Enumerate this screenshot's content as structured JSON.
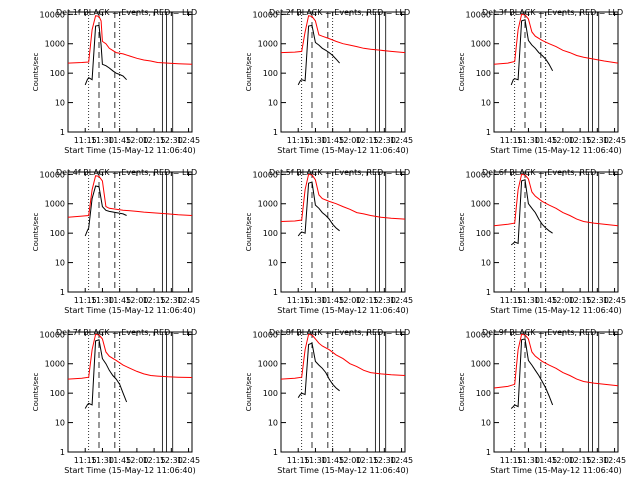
{
  "figure": {
    "xlabel": "Start Time (15-May-12 11:06:40)",
    "ylabel": "Counts/sec",
    "x_tick_labels": [
      "11:15",
      "11:30",
      "11:45",
      "12:00",
      "12:15",
      "12:30",
      "12:45"
    ],
    "y_tick_labels": [
      "1",
      "10",
      "100",
      "1000",
      "10000"
    ],
    "colors": {
      "events": "#000000",
      "lld": "#ff0000",
      "axes": "#000000"
    }
  },
  "chart_data": [
    {
      "type": "line",
      "title": "Det 1f BLACK = Events, RED = LLD",
      "yscale": "log",
      "xlim": [
        11.0,
        12.8
      ],
      "ylim": [
        1,
        12000
      ],
      "series": [
        {
          "name": "Events",
          "x": [
            11.25,
            11.28,
            11.3,
            11.35,
            11.4,
            11.45,
            11.48,
            11.5,
            11.55,
            11.6,
            11.65,
            11.7,
            11.75,
            11.8,
            11.85
          ],
          "y": [
            40,
            60,
            70,
            60,
            4000,
            4200,
            900,
            200,
            180,
            150,
            120,
            100,
            90,
            80,
            60
          ]
        },
        {
          "name": "LLD",
          "x": [
            11.0,
            11.2,
            11.3,
            11.35,
            11.4,
            11.45,
            11.48,
            11.5,
            11.55,
            11.6,
            11.7,
            11.8,
            11.9,
            12.0,
            12.1,
            12.2,
            12.3,
            12.45,
            12.6,
            12.8
          ],
          "y": [
            220,
            230,
            240,
            3000,
            9000,
            8500,
            6000,
            1200,
            1000,
            700,
            500,
            450,
            380,
            320,
            280,
            260,
            230,
            220,
            210,
            200
          ]
        }
      ]
    },
    {
      "type": "line",
      "title": "Det 2f BLACK = Events, RED = LLD",
      "yscale": "log",
      "xlim": [
        11.0,
        12.8
      ],
      "ylim": [
        1,
        12000
      ],
      "series": [
        {
          "name": "Events",
          "x": [
            11.25,
            11.28,
            11.3,
            11.35,
            11.4,
            11.45,
            11.5,
            11.55,
            11.6,
            11.65,
            11.7,
            11.75,
            11.8,
            11.85
          ],
          "y": [
            40,
            55,
            60,
            55,
            4000,
            4200,
            1100,
            900,
            700,
            600,
            500,
            400,
            300,
            220
          ]
        },
        {
          "name": "LLD",
          "x": [
            11.0,
            11.2,
            11.3,
            11.35,
            11.4,
            11.45,
            11.5,
            11.55,
            11.6,
            11.7,
            11.8,
            11.9,
            12.0,
            12.1,
            12.2,
            12.3,
            12.45,
            12.6,
            12.8
          ],
          "y": [
            500,
            520,
            550,
            2500,
            9000,
            8500,
            6000,
            2000,
            1800,
            1500,
            1200,
            1000,
            900,
            800,
            700,
            650,
            600,
            550,
            500
          ]
        }
      ]
    },
    {
      "type": "line",
      "title": "Det 3f BLACK = Events, RED = LLD",
      "yscale": "log",
      "xlim": [
        11.0,
        12.8
      ],
      "ylim": [
        1,
        12000
      ],
      "series": [
        {
          "name": "Events",
          "x": [
            11.25,
            11.28,
            11.3,
            11.35,
            11.4,
            11.45,
            11.5,
            11.55,
            11.6,
            11.65,
            11.7,
            11.75,
            11.8,
            11.85
          ],
          "y": [
            40,
            60,
            65,
            60,
            6000,
            6500,
            1300,
            900,
            700,
            500,
            400,
            300,
            200,
            120
          ]
        },
        {
          "name": "LLD",
          "x": [
            11.0,
            11.2,
            11.3,
            11.35,
            11.4,
            11.45,
            11.5,
            11.55,
            11.6,
            11.7,
            11.8,
            11.9,
            12.0,
            12.1,
            12.2,
            12.3,
            12.45,
            12.6,
            12.8
          ],
          "y": [
            200,
            220,
            250,
            3000,
            10000,
            9500,
            7000,
            2500,
            1800,
            1300,
            1000,
            800,
            600,
            500,
            400,
            350,
            300,
            260,
            220
          ]
        }
      ]
    },
    {
      "type": "line",
      "title": "Det 4f BLACK = Events, RED = LLD",
      "yscale": "log",
      "xlim": [
        11.0,
        12.8
      ],
      "ylim": [
        1,
        12000
      ],
      "series": [
        {
          "name": "Events",
          "x": [
            11.25,
            11.28,
            11.3,
            11.35,
            11.4,
            11.45,
            11.5,
            11.55,
            11.6,
            11.7,
            11.8,
            11.85
          ],
          "y": [
            80,
            120,
            150,
            1500,
            4000,
            3800,
            800,
            600,
            550,
            500,
            450,
            400
          ]
        },
        {
          "name": "LLD",
          "x": [
            11.0,
            11.2,
            11.3,
            11.35,
            11.4,
            11.45,
            11.5,
            11.55,
            11.6,
            11.7,
            11.8,
            11.9,
            12.0,
            12.1,
            12.2,
            12.3,
            12.45,
            12.6,
            12.8
          ],
          "y": [
            350,
            380,
            400,
            3000,
            9000,
            8500,
            6000,
            800,
            700,
            650,
            600,
            580,
            550,
            520,
            500,
            480,
            450,
            420,
            400
          ]
        }
      ]
    },
    {
      "type": "line",
      "title": "Det 5f BLACK = Events, RED = LLD",
      "yscale": "log",
      "xlim": [
        11.0,
        12.8
      ],
      "ylim": [
        1,
        12000
      ],
      "series": [
        {
          "name": "Events",
          "x": [
            11.25,
            11.28,
            11.3,
            11.35,
            11.4,
            11.45,
            11.5,
            11.55,
            11.6,
            11.65,
            11.7,
            11.75,
            11.8,
            11.85
          ],
          "y": [
            80,
            100,
            110,
            100,
            5000,
            5500,
            900,
            700,
            500,
            400,
            300,
            200,
            150,
            120
          ]
        },
        {
          "name": "LLD",
          "x": [
            11.0,
            11.2,
            11.3,
            11.35,
            11.4,
            11.45,
            11.5,
            11.55,
            11.6,
            11.7,
            11.8,
            11.9,
            12.0,
            12.1,
            12.2,
            12.3,
            12.45,
            12.6,
            12.8
          ],
          "y": [
            250,
            260,
            280,
            3000,
            10000,
            9500,
            6500,
            2000,
            1500,
            1200,
            1000,
            800,
            650,
            500,
            450,
            400,
            350,
            320,
            300
          ]
        }
      ]
    },
    {
      "type": "line",
      "title": "Det 6f BLACK = Events, RED = LLD",
      "yscale": "log",
      "xlim": [
        11.0,
        12.8
      ],
      "ylim": [
        1,
        12000
      ],
      "series": [
        {
          "name": "Events",
          "x": [
            11.25,
            11.28,
            11.3,
            11.35,
            11.4,
            11.45,
            11.5,
            11.55,
            11.6,
            11.65,
            11.7,
            11.75,
            11.8,
            11.85
          ],
          "y": [
            40,
            45,
            50,
            45,
            6000,
            6500,
            1000,
            700,
            500,
            300,
            200,
            150,
            120,
            100
          ]
        },
        {
          "name": "LLD",
          "x": [
            11.0,
            11.2,
            11.3,
            11.35,
            11.4,
            11.45,
            11.5,
            11.55,
            11.6,
            11.7,
            11.8,
            11.9,
            12.0,
            12.1,
            12.2,
            12.3,
            12.45,
            12.6,
            12.8
          ],
          "y": [
            180,
            200,
            220,
            3000,
            10000,
            9500,
            7000,
            2500,
            1800,
            1200,
            900,
            700,
            500,
            400,
            300,
            250,
            220,
            200,
            180
          ]
        }
      ]
    },
    {
      "type": "line",
      "title": "Det 7f BLACK = Events, RED = LLD",
      "yscale": "log",
      "xlim": [
        11.0,
        12.8
      ],
      "ylim": [
        1,
        12000
      ],
      "series": [
        {
          "name": "Events",
          "x": [
            11.25,
            11.28,
            11.3,
            11.35,
            11.4,
            11.45,
            11.5,
            11.55,
            11.6,
            11.65,
            11.7,
            11.75,
            11.8,
            11.85
          ],
          "y": [
            30,
            40,
            45,
            40,
            6000,
            6500,
            1500,
            1000,
            600,
            400,
            300,
            200,
            100,
            50
          ]
        },
        {
          "name": "LLD",
          "x": [
            11.0,
            11.2,
            11.3,
            11.35,
            11.4,
            11.45,
            11.5,
            11.55,
            11.6,
            11.7,
            11.8,
            11.9,
            12.0,
            12.1,
            12.2,
            12.3,
            12.45,
            12.6,
            12.8
          ],
          "y": [
            300,
            320,
            350,
            3000,
            10000,
            9500,
            7000,
            2500,
            1800,
            1300,
            900,
            700,
            550,
            450,
            400,
            380,
            360,
            350,
            340
          ]
        }
      ]
    },
    {
      "type": "line",
      "title": "Det 8f BLACK = Events, RED = LLD",
      "yscale": "log",
      "xlim": [
        11.0,
        12.8
      ],
      "ylim": [
        1,
        12000
      ],
      "series": [
        {
          "name": "Events",
          "x": [
            11.25,
            11.28,
            11.3,
            11.35,
            11.4,
            11.45,
            11.5,
            11.55,
            11.6,
            11.65,
            11.7,
            11.75,
            11.8,
            11.85
          ],
          "y": [
            70,
            90,
            100,
            90,
            4500,
            5000,
            1200,
            900,
            700,
            500,
            300,
            200,
            150,
            120
          ]
        },
        {
          "name": "LLD",
          "x": [
            11.0,
            11.2,
            11.3,
            11.35,
            11.4,
            11.45,
            11.5,
            11.55,
            11.6,
            11.7,
            11.8,
            11.9,
            12.0,
            12.1,
            12.2,
            12.3,
            12.45,
            12.6,
            12.8
          ],
          "y": [
            300,
            320,
            350,
            3000,
            10000,
            9500,
            7000,
            5000,
            4000,
            3000,
            2000,
            1500,
            1000,
            800,
            600,
            500,
            450,
            420,
            400
          ]
        }
      ]
    },
    {
      "type": "line",
      "title": "Det 9f BLACK = Events, RED = LLD",
      "yscale": "log",
      "xlim": [
        11.0,
        12.8
      ],
      "ylim": [
        1,
        12000
      ],
      "series": [
        {
          "name": "Events",
          "x": [
            11.25,
            11.28,
            11.3,
            11.35,
            11.4,
            11.45,
            11.5,
            11.55,
            11.6,
            11.65,
            11.7,
            11.75,
            11.8,
            11.85
          ],
          "y": [
            30,
            35,
            40,
            35,
            6500,
            7000,
            1300,
            900,
            600,
            400,
            250,
            150,
            80,
            40
          ]
        },
        {
          "name": "LLD",
          "x": [
            11.0,
            11.2,
            11.3,
            11.35,
            11.4,
            11.45,
            11.5,
            11.55,
            11.6,
            11.7,
            11.8,
            11.9,
            12.0,
            12.1,
            12.2,
            12.3,
            12.45,
            12.6,
            12.8
          ],
          "y": [
            150,
            170,
            200,
            3000,
            10000,
            9500,
            7000,
            2500,
            1800,
            1200,
            900,
            700,
            500,
            400,
            300,
            250,
            220,
            200,
            180
          ]
        }
      ]
    }
  ]
}
